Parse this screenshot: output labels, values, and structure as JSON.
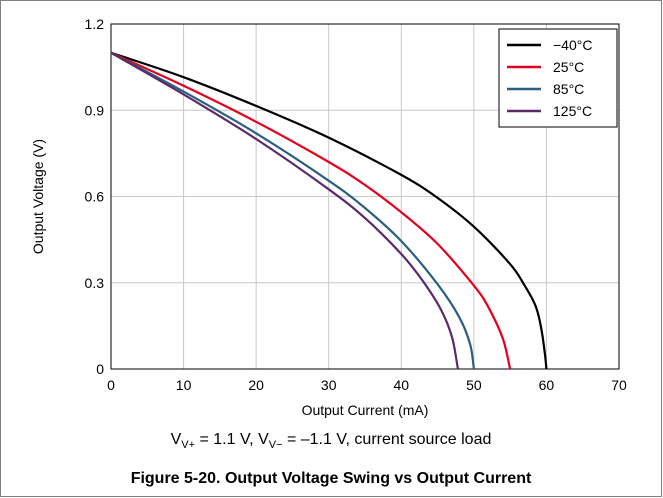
{
  "chart_data": {
    "type": "line",
    "title": "Figure 5-20. Output Voltage Swing vs Output Current",
    "xlabel": "Output Current (mA)",
    "ylabel": "Output Voltage (V)",
    "xlim": [
      0,
      70
    ],
    "ylim": [
      0,
      1.2
    ],
    "xticks": [
      "0",
      "10",
      "20",
      "30",
      "40",
      "50",
      "60",
      "70"
    ],
    "yticks": [
      "0",
      "0.3",
      "0.6",
      "0.9",
      "1.2"
    ],
    "grid": true,
    "legend_position": "top-right",
    "series": [
      {
        "name": "−40°C",
        "color": "#000000",
        "x": [
          0,
          10,
          20,
          30,
          40,
          45,
          50,
          55,
          57,
          58.5,
          59.3,
          59.8,
          60
        ],
        "y": [
          1.1,
          1.015,
          0.915,
          0.805,
          0.675,
          0.595,
          0.495,
          0.365,
          0.29,
          0.22,
          0.14,
          0.05,
          0
        ]
      },
      {
        "name": "25°C",
        "color": "#e4001c",
        "x": [
          0,
          10,
          20,
          30,
          35,
          40,
          45,
          50,
          52,
          54,
          55
        ],
        "y": [
          1.1,
          0.985,
          0.86,
          0.72,
          0.64,
          0.545,
          0.435,
          0.29,
          0.215,
          0.105,
          0
        ]
      },
      {
        "name": "85°C",
        "color": "#2a5f7f",
        "x": [
          0,
          10,
          20,
          30,
          35,
          40,
          45,
          48,
          49.5,
          50
        ],
        "y": [
          1.1,
          0.965,
          0.82,
          0.655,
          0.56,
          0.445,
          0.295,
          0.18,
          0.085,
          0
        ]
      },
      {
        "name": "125°C",
        "color": "#5b2a6b",
        "x": [
          0,
          10,
          20,
          30,
          35,
          40,
          43,
          45.5,
          47,
          47.8
        ],
        "y": [
          1.1,
          0.955,
          0.8,
          0.625,
          0.525,
          0.4,
          0.305,
          0.205,
          0.11,
          0
        ]
      }
    ]
  },
  "conditions": {
    "v_plus_main": "V",
    "v_plus_sub": "V+",
    "v_plus_value": " = 1.1 V, ",
    "v_minus_main": "V",
    "v_minus_sub": "V−",
    "v_minus_value": " = –1.1 V, current source load"
  }
}
